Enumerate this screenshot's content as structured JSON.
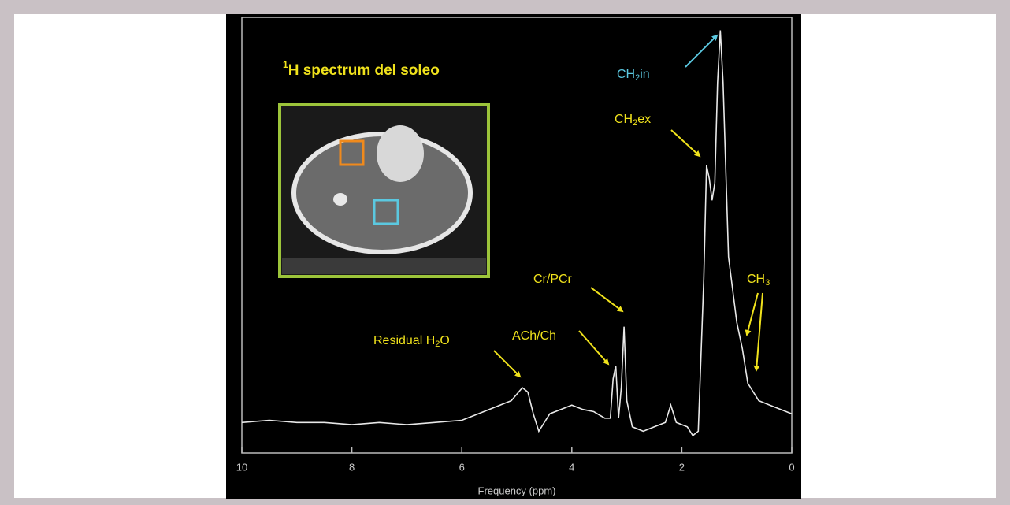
{
  "chart_data": {
    "type": "line",
    "title": {
      "sup": "1",
      "text": "H spectrum del soleo"
    },
    "x_label": "Frequency (ppm)",
    "xlim": [
      10,
      0
    ],
    "ylim": [
      0,
      100
    ],
    "xticks": [
      10,
      8,
      6,
      4,
      2,
      0
    ],
    "series": [
      {
        "color": "#e8e8e8",
        "x": [
          10,
          9.5,
          9,
          8.5,
          8,
          7.5,
          7,
          6.5,
          6,
          5.7,
          5.4,
          5.1,
          4.9,
          4.8,
          4.7,
          4.6,
          4.4,
          4.2,
          4.0,
          3.8,
          3.6,
          3.4,
          3.3,
          3.25,
          3.2,
          3.15,
          3.1,
          3.05,
          3.0,
          2.9,
          2.7,
          2.5,
          2.3,
          2.2,
          2.1,
          1.9,
          1.8,
          1.7,
          1.6,
          1.55,
          1.5,
          1.45,
          1.4,
          1.35,
          1.3,
          1.25,
          1.15,
          1.0,
          0.9,
          0.8,
          0.6,
          0.4,
          0.2,
          0
        ],
        "values": [
          7,
          7.5,
          7,
          7,
          6.5,
          7,
          6.5,
          7,
          7.5,
          9,
          10.5,
          12,
          15,
          14,
          9,
          5,
          9,
          10,
          11,
          10,
          9.5,
          8,
          8,
          17,
          20,
          8,
          15,
          29,
          12,
          6,
          5,
          6,
          7,
          11,
          7,
          6,
          4,
          5,
          40,
          66,
          63,
          58,
          62,
          85,
          97,
          85,
          45,
          30,
          24,
          16,
          12,
          11,
          10,
          9
        ]
      }
    ],
    "annotations": [
      {
        "color": "#f0e21c",
        "parts": [
          {
            "text": "Residual H"
          },
          {
            "sub": "2"
          },
          {
            "text": "O"
          }
        ]
      },
      {
        "color": "#f0e21c",
        "parts": [
          {
            "text": "ACh/Ch"
          }
        ]
      },
      {
        "color": "#f0e21c",
        "parts": [
          {
            "text": "Cr/PCr"
          }
        ]
      },
      {
        "color": "#f0e21c",
        "parts": [
          {
            "text": "CH"
          },
          {
            "sub": "2"
          },
          {
            "text": "ex"
          }
        ]
      },
      {
        "color": "#5bc8e0",
        "parts": [
          {
            "text": "CH"
          },
          {
            "sub": "2"
          },
          {
            "text": "in"
          }
        ]
      },
      {
        "color": "#f0e21c",
        "parts": [
          {
            "text": "CH"
          },
          {
            "sub": "3"
          }
        ]
      }
    ]
  }
}
